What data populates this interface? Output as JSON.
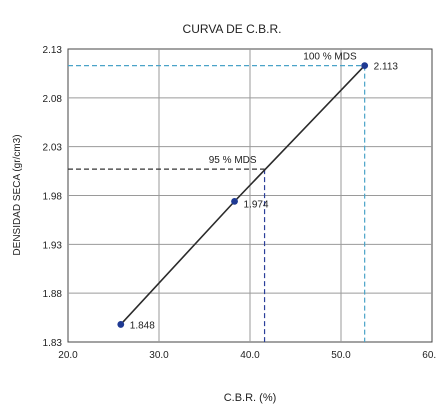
{
  "chart_data": {
    "type": "line",
    "title": "CURVA DE C.B.R.",
    "xlabel": "C.B.R. (%)",
    "ylabel": "DENSIDAD SECA (gr/cm3)",
    "xlim": [
      20.0,
      60.0
    ],
    "ylim": [
      1.83,
      2.13
    ],
    "x_ticks": [
      "20.0",
      "30.0",
      "40.0",
      "50.0",
      "60.0"
    ],
    "y_ticks": [
      "1.83",
      "1.88",
      "1.93",
      "1.98",
      "2.03",
      "2.08",
      "2.13"
    ],
    "x_tick_values": [
      20,
      30,
      40,
      50,
      60
    ],
    "y_tick_values": [
      1.83,
      1.88,
      1.93,
      1.98,
      2.03,
      2.08,
      2.13
    ],
    "grid": true,
    "series": [
      {
        "x": [
          25.8,
          38.3,
          52.6
        ],
        "y": [
          1.848,
          1.974,
          2.113
        ],
        "point_labels": [
          "1.848",
          "1.974",
          "2.113"
        ],
        "color": "#2b2b2b",
        "marker_color": "#1f3a93"
      }
    ],
    "reference_lines": [
      {
        "label": "100 % MDS",
        "y": 2.113,
        "x": 52.6,
        "color": "#4aa3c8"
      },
      {
        "label": "95 % MDS",
        "y": 2.007,
        "x": 41.6,
        "color": "#333333"
      }
    ]
  }
}
